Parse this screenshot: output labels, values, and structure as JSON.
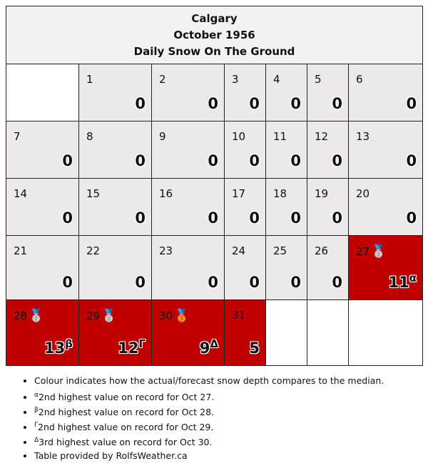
{
  "header": {
    "title": "Calgary",
    "subtitle": "October 1956",
    "caption": "Daily Snow On The Ground"
  },
  "table": {
    "rows": [
      [
        null,
        {
          "day": 1,
          "value": 0,
          "color": "#ede8e9"
        },
        {
          "day": 2,
          "value": 0,
          "color": "#ede8e9"
        },
        {
          "day": 3,
          "value": 0,
          "color": "#ede8e9"
        },
        {
          "day": 4,
          "value": 0,
          "color": "#ede8e9"
        },
        {
          "day": 5,
          "value": 0,
          "color": "#ede8e9"
        },
        {
          "day": 6,
          "value": 0,
          "color": "#ede8e9"
        }
      ],
      [
        {
          "day": 7,
          "value": 0,
          "color": "#ede8e9"
        },
        {
          "day": 8,
          "value": 0,
          "color": "#ede8e9"
        },
        {
          "day": 9,
          "value": 0,
          "color": "#ede8e9"
        },
        {
          "day": 10,
          "value": 0,
          "color": "#ede8e9"
        },
        {
          "day": 11,
          "value": 0,
          "color": "#ede8e9"
        },
        {
          "day": 12,
          "value": 0,
          "color": "#ede8e9"
        },
        {
          "day": 13,
          "value": 0,
          "color": "#ede8e9"
        }
      ],
      [
        {
          "day": 14,
          "value": 0,
          "color": "#ede8e9"
        },
        {
          "day": 15,
          "value": 0,
          "color": "#ede8e9"
        },
        {
          "day": 16,
          "value": 0,
          "color": "#ede8e9"
        },
        {
          "day": 17,
          "value": 0,
          "color": "#ede8e9"
        },
        {
          "day": 18,
          "value": 0,
          "color": "#ede8e9"
        },
        {
          "day": 19,
          "value": 0,
          "color": "#ede8e9"
        },
        {
          "day": 20,
          "value": 0,
          "color": "#ede8e9"
        }
      ],
      [
        {
          "day": 21,
          "value": 0,
          "color": "#ede8e9"
        },
        {
          "day": 22,
          "value": 0,
          "color": "#ede8e9"
        },
        {
          "day": 23,
          "value": 0,
          "color": "#ede8e9"
        },
        {
          "day": 24,
          "value": 0,
          "color": "#ede8e9"
        },
        {
          "day": 25,
          "value": 0,
          "color": "#ede8e9"
        },
        {
          "day": 26,
          "value": 0,
          "color": "#ede8e9"
        },
        {
          "day": 27,
          "value": 11,
          "mark": "α",
          "medal": "🥈",
          "color": "#c00000"
        }
      ],
      [
        {
          "day": 28,
          "value": 13,
          "mark": "β",
          "medal": "🥈",
          "color": "#c00000"
        },
        {
          "day": 29,
          "value": 12,
          "mark": "Γ",
          "medal": "🥈",
          "color": "#c00000"
        },
        {
          "day": 30,
          "value": 9,
          "mark": "Δ",
          "medal": "🥉",
          "color": "#c00000"
        },
        {
          "day": 31,
          "value": 5,
          "color": "#c00000"
        },
        null,
        null,
        null
      ]
    ]
  },
  "notes": [
    {
      "text": "Colour indicates how the actual/forecast snow depth compares to the median."
    },
    {
      "mark": "α",
      "text": "2nd highest value on record for Oct 27."
    },
    {
      "mark": "β",
      "text": "2nd highest value on record for Oct 28."
    },
    {
      "mark": "Γ",
      "text": "2nd highest value on record for Oct 29."
    },
    {
      "mark": "Δ",
      "text": "3rd highest value on record for Oct 30."
    },
    {
      "text": "Table provided by RolfsWeather.ca"
    }
  ]
}
